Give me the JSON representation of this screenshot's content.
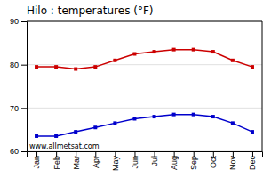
{
  "chart_data": {
    "type": "line",
    "title": "Hilo : temperatures (°F)",
    "categories": [
      "Jan",
      "Feb",
      "Mar",
      "Apr",
      "May",
      "Jun",
      "Jul",
      "Aug",
      "Sep",
      "Oct",
      "Nov",
      "Dec"
    ],
    "series": [
      {
        "color": "#cc0000",
        "marker": "square",
        "line_style": "solid",
        "values": [
          79.5,
          79.5,
          79.0,
          79.5,
          81.0,
          82.5,
          83.0,
          83.5,
          83.5,
          83.0,
          81.0,
          79.5
        ]
      },
      {
        "color": "#0000cc",
        "marker": "square",
        "line_style": "solid",
        "values": [
          63.5,
          63.5,
          64.5,
          65.5,
          66.5,
          67.5,
          68.0,
          68.5,
          68.5,
          68.0,
          66.5,
          64.5
        ]
      }
    ],
    "ylim": [
      60,
      90
    ],
    "yticks": [
      60,
      70,
      80,
      90
    ],
    "grid": true,
    "annotations": [
      "www.allmetsat.com"
    ]
  }
}
